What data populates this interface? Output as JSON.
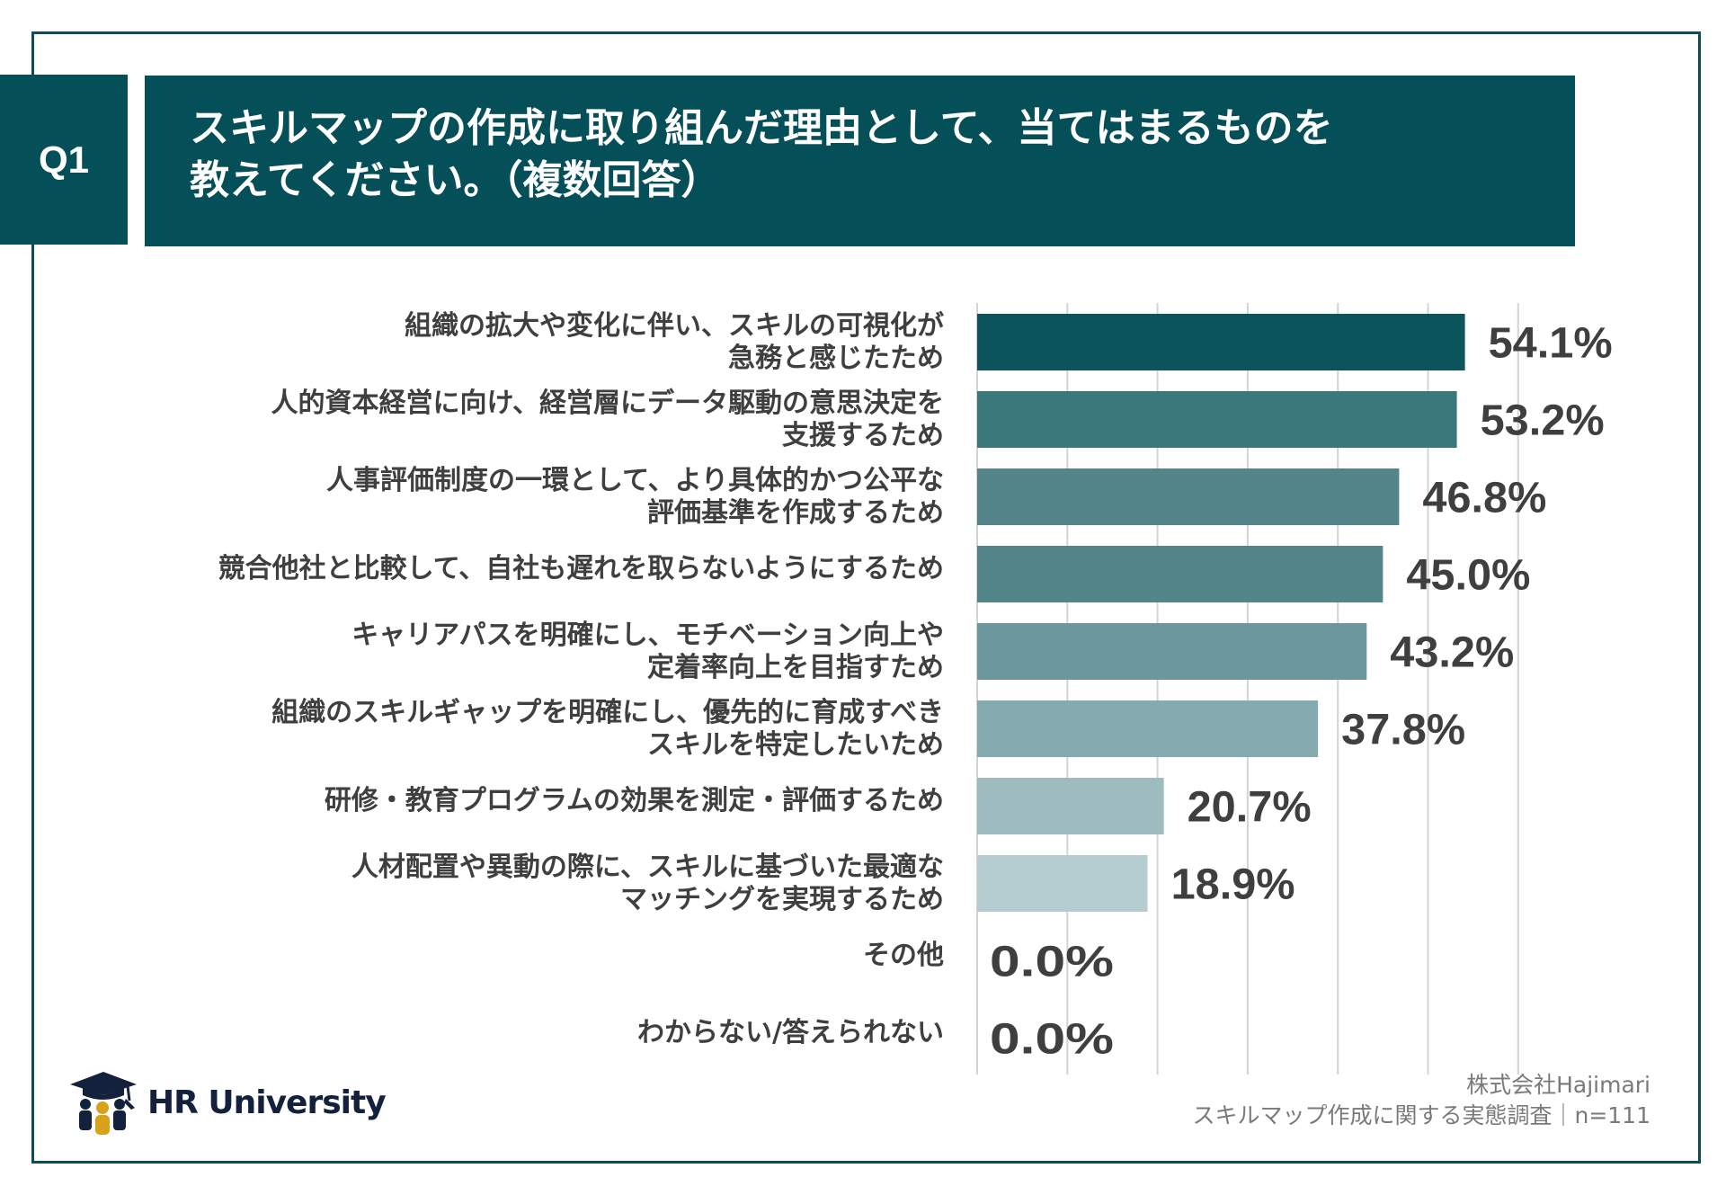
{
  "header": {
    "question_number": "Q1",
    "title_lines": [
      "スキルマップの作成に取り組んだ理由として、当てはまるものを",
      "教えてください。（複数回答）"
    ]
  },
  "chart_data": {
    "type": "bar",
    "orientation": "horizontal",
    "title": "スキルマップの作成に取り組んだ理由として、当てはまるものを教えてください。（複数回答）",
    "xlabel": "",
    "ylabel": "",
    "xlim": [
      0,
      70
    ],
    "grid": true,
    "grid_step": 10,
    "value_suffix": "%",
    "categories": [
      [
        "組織の拡大や変化に伴い、スキルの可視化が",
        "急務と感じたため"
      ],
      [
        "人的資本経営に向け、経営層にデータ駆動の意思決定を",
        "支援するため"
      ],
      [
        "人事評価制度の一環として、より具体的かつ公平な",
        "評価基準を作成するため"
      ],
      [
        "競合他社と比較して、自社も遅れを取らないようにするため"
      ],
      [
        "キャリアパスを明確にし、モチベーション向上や",
        "定着率向上を目指すため"
      ],
      [
        "組織のスキルギャップを明確にし、優先的に育成すべき",
        "スキルを特定したいため"
      ],
      [
        "研修・教育プログラムの効果を測定・評価するため"
      ],
      [
        "人材配置や異動の際に、スキルに基づいた最適な",
        "マッチングを実現するため"
      ],
      [
        "その他"
      ],
      [
        "わからない/答えられない"
      ]
    ],
    "values": [
      54.1,
      53.2,
      46.8,
      45.0,
      43.2,
      37.8,
      20.7,
      18.9,
      0.0,
      0.0
    ],
    "value_labels": [
      "54.1%",
      "53.2%",
      "46.8%",
      "45.0%",
      "43.2%",
      "37.8%",
      "20.7%",
      "18.9%",
      "0.0%",
      "0.0%"
    ],
    "bar_colors": [
      "#044f58",
      "#357478",
      "#4d8187",
      "#4d8187",
      "#66949a",
      "#80a9ad",
      "#9bbabd",
      "#b3cbce",
      "#c9d9db",
      "#c9d9db"
    ],
    "label_color": "#3f3f3f",
    "gridline_color": "#d4d4d4"
  },
  "footer": {
    "company": "株式会社Hajimari",
    "survey": "スキルマップ作成に関する実態調査｜n=111"
  },
  "logo": {
    "text": "HR University",
    "icon": "graduation-cap-people-icon"
  },
  "colors": {
    "brand": "#044f58",
    "frame": "#0d4d55",
    "logo_navy": "#14213d",
    "logo_gold": "#d9a21b"
  }
}
